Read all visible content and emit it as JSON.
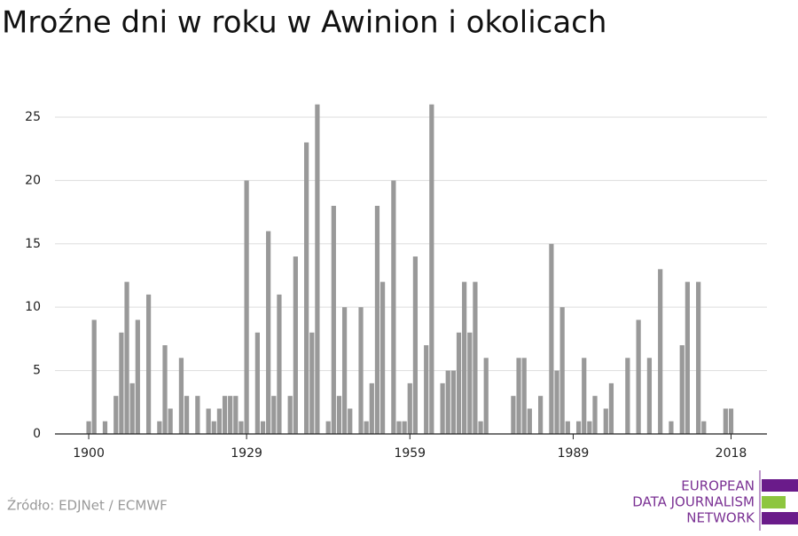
{
  "chart_data": {
    "type": "bar",
    "title": "Mroźne dni w roku w Awinion i okolicach",
    "source": "Źródło: EDJNet / ECMWF",
    "logo": [
      "EUROPEAN",
      "DATA JOURNALISM",
      "NETWORK"
    ],
    "color": "#999999",
    "grid": true,
    "x": [
      1900,
      1901,
      1902,
      1903,
      1904,
      1905,
      1906,
      1907,
      1908,
      1909,
      1910,
      1911,
      1912,
      1913,
      1914,
      1915,
      1916,
      1917,
      1918,
      1919,
      1920,
      1921,
      1922,
      1923,
      1924,
      1925,
      1926,
      1927,
      1928,
      1929,
      1930,
      1931,
      1932,
      1933,
      1934,
      1935,
      1936,
      1937,
      1938,
      1939,
      1940,
      1941,
      1942,
      1943,
      1944,
      1945,
      1946,
      1947,
      1948,
      1949,
      1950,
      1951,
      1952,
      1953,
      1954,
      1955,
      1956,
      1957,
      1958,
      1959,
      1960,
      1961,
      1962,
      1963,
      1964,
      1965,
      1966,
      1967,
      1968,
      1969,
      1970,
      1971,
      1972,
      1973,
      1974,
      1975,
      1976,
      1977,
      1978,
      1979,
      1980,
      1981,
      1982,
      1983,
      1984,
      1985,
      1986,
      1987,
      1988,
      1989,
      1990,
      1991,
      1992,
      1993,
      1994,
      1995,
      1996,
      1997,
      1998,
      1999,
      2000,
      2001,
      2002,
      2003,
      2004,
      2005,
      2006,
      2007,
      2008,
      2009,
      2010,
      2011,
      2012,
      2013,
      2014,
      2015,
      2016,
      2017,
      2018
    ],
    "values": [
      1,
      9,
      0,
      1,
      0,
      3,
      8,
      12,
      4,
      9,
      0,
      11,
      0,
      1,
      7,
      2,
      0,
      6,
      3,
      0,
      3,
      0,
      2,
      1,
      2,
      3,
      3,
      3,
      1,
      20,
      0,
      8,
      1,
      16,
      3,
      11,
      0,
      3,
      14,
      0,
      23,
      8,
      26,
      0,
      1,
      18,
      3,
      10,
      2,
      0,
      10,
      1,
      4,
      18,
      12,
      0,
      20,
      1,
      1,
      4,
      14,
      0,
      7,
      26,
      0,
      4,
      5,
      5,
      8,
      12,
      8,
      12,
      1,
      6,
      0,
      0,
      0,
      0,
      3,
      6,
      6,
      2,
      0,
      3,
      0,
      15,
      5,
      10,
      1,
      0,
      1,
      6,
      1,
      3,
      0,
      2,
      4,
      0,
      0,
      6,
      0,
      9,
      0,
      6,
      0,
      13,
      0,
      1,
      0,
      7,
      12,
      0,
      12,
      1,
      0,
      0,
      0,
      2,
      2
    ],
    "xlim": [
      1893.8,
      2024.6
    ],
    "xticks": [
      1900,
      1929,
      1959,
      1989,
      2018
    ],
    "ylim": [
      0,
      27
    ],
    "yticks": [
      0,
      5,
      10,
      15,
      20,
      25
    ]
  }
}
